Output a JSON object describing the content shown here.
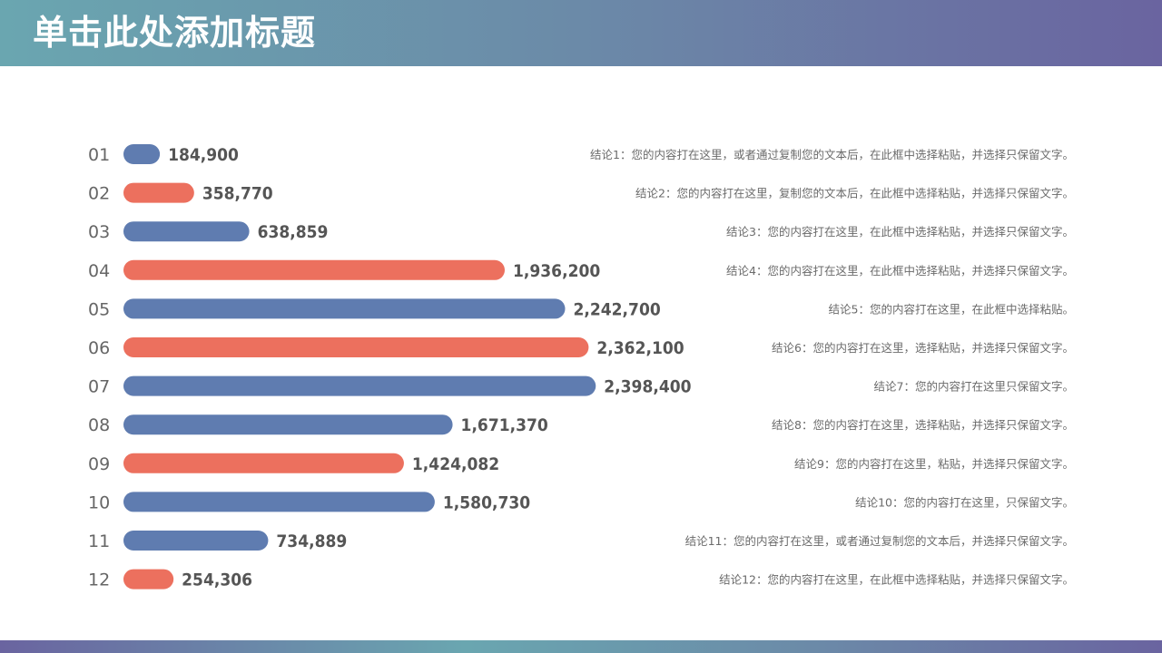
{
  "title": "单击此处添加标题",
  "colors": {
    "blue": "#5f7cb0",
    "orange": "#ec705e"
  },
  "chart_data": {
    "type": "bar",
    "orientation": "horizontal",
    "categories": [
      "01",
      "02",
      "03",
      "04",
      "05",
      "06",
      "07",
      "08",
      "09",
      "10",
      "11",
      "12"
    ],
    "values": [
      184900,
      358770,
      638859,
      1936200,
      2242700,
      2362100,
      2398400,
      1671370,
      1424082,
      1580730,
      734889,
      254306
    ],
    "value_labels": [
      "184,900",
      "358,770",
      "638,859",
      "1,936,200",
      "2,242,700",
      "2,362,100",
      "2,398,400",
      "1,671,370",
      "1,424,082",
      "1,580,730",
      "734,889",
      "254,306"
    ],
    "bar_colors": [
      "blue",
      "orange",
      "blue",
      "orange",
      "blue",
      "orange",
      "blue",
      "blue",
      "orange",
      "blue",
      "blue",
      "orange"
    ],
    "notes": [
      "结论1：您的内容打在这里，或者通过复制您的文本后，在此框中选择粘贴，并选择只保留文字。",
      "结论2：您的内容打在这里，复制您的文本后，在此框中选择粘贴，并选择只保留文字。",
      "结论3：您的内容打在这里，在此框中选择粘贴，并选择只保留文字。",
      "结论4：您的内容打在这里，在此框中选择粘贴，并选择只保留文字。",
      "结论5：您的内容打在这里，在此框中选择粘贴。",
      "结论6：您的内容打在这里，选择粘贴，并选择只保留文字。",
      "结论7：您的内容打在这里只保留文字。",
      "结论8：您的内容打在这里，选择粘贴，并选择只保留文字。",
      "结论9：您的内容打在这里，粘贴，并选择只保留文字。",
      "结论10：您的内容打在这里，只保留文字。",
      "结论11：您的内容打在这里，或者通过复制您的文本后，并选择只保留文字。",
      "结论12：您的内容打在这里，在此框中选择粘贴，并选择只保留文字。"
    ],
    "xlim": [
      0,
      2600000
    ],
    "grid": false,
    "title": "",
    "xlabel": "",
    "ylabel": ""
  }
}
